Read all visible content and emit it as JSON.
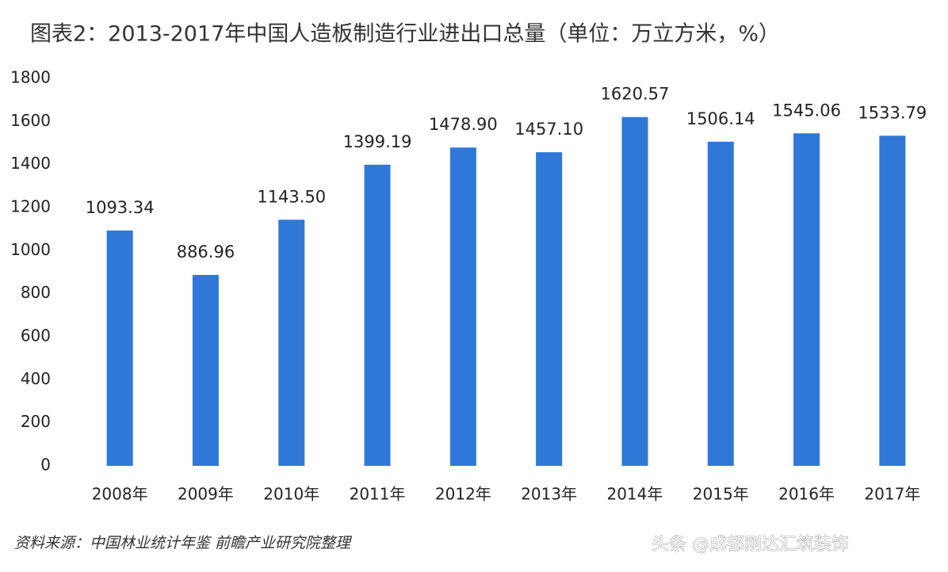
{
  "chart_data": {
    "type": "bar",
    "title": "图表2：2013-2017年中国人造板制造行业进出口总量（单位：万立方米，%）",
    "categories": [
      "2008年",
      "2009年",
      "2010年",
      "2011年",
      "2012年",
      "2013年",
      "2014年",
      "2015年",
      "2016年",
      "2017年"
    ],
    "values": [
      1093.34,
      886.96,
      1143.5,
      1399.19,
      1478.9,
      1457.1,
      1620.57,
      1506.14,
      1545.06,
      1533.79
    ],
    "value_labels": [
      "1093.34",
      "886.96",
      "1143.50",
      "1399.19",
      "1478.90",
      "1457.10",
      "1620.57",
      "1506.14",
      "1545.06",
      "1533.79"
    ],
    "color": "#2f78d8",
    "ylim": [
      0,
      1800
    ],
    "yticks": [
      0,
      200,
      400,
      600,
      800,
      1000,
      1200,
      1400,
      1600,
      1800
    ],
    "grid": false,
    "source": "资料来源：中国林业统计年鉴 前瞻产业研究院整理",
    "watermark": "头条 @成都刚达汇筑装饰"
  }
}
